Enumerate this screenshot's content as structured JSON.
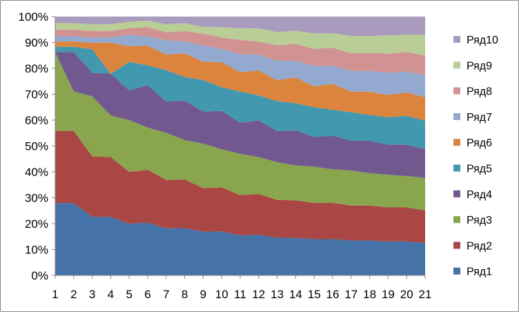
{
  "chart_data": {
    "type": "area",
    "stacked": "percent",
    "title": "",
    "xlabel": "",
    "ylabel": "",
    "x": [
      1,
      2,
      3,
      4,
      5,
      6,
      7,
      8,
      9,
      10,
      11,
      12,
      13,
      14,
      15,
      16,
      17,
      18,
      19,
      20,
      21
    ],
    "x_tick_labels": [
      "1",
      "2",
      "3",
      "4",
      "5",
      "6",
      "7",
      "8",
      "9",
      "10",
      "11",
      "12",
      "13",
      "14",
      "15",
      "16",
      "17",
      "18",
      "19",
      "20",
      "21"
    ],
    "y_tick_labels": [
      "0%",
      "10%",
      "20%",
      "30%",
      "40%",
      "50%",
      "60%",
      "70%",
      "80%",
      "90%",
      "100%"
    ],
    "ylim": [
      0,
      100
    ],
    "grid": false,
    "legend_position": "right",
    "series": [
      {
        "name": "Ряд1",
        "color": "#4572A7",
        "values": [
          27.5,
          27.5,
          22.5,
          22.5,
          20,
          20,
          18,
          18,
          16.7,
          16.7,
          15.5,
          15.5,
          14.5,
          14.5,
          14,
          14,
          13.5,
          13.5,
          13,
          13,
          12.5
        ]
      },
      {
        "name": "Ряд2",
        "color": "#AA4643",
        "values": [
          27.5,
          27.5,
          23,
          23,
          20,
          20,
          18.5,
          18.5,
          16.7,
          16.7,
          15.5,
          15.5,
          14.5,
          14.5,
          14,
          14,
          13.5,
          13.5,
          13,
          13,
          12.5
        ]
      },
      {
        "name": "Ряд3",
        "color": "#89A54E",
        "values": [
          30,
          15,
          23,
          16,
          20,
          16,
          18,
          15,
          17,
          14.5,
          16,
          14,
          14.5,
          13.5,
          14,
          13,
          13.5,
          12.5,
          12.5,
          12,
          12.5
        ]
      },
      {
        "name": "Ряд4",
        "color": "#71588F",
        "values": [
          0,
          15,
          9,
          16,
          11.5,
          16,
          12,
          15,
          12.3,
          14.5,
          12,
          14,
          12,
          13.5,
          11.5,
          13,
          11.5,
          12.5,
          11.5,
          12,
          11
        ]
      },
      {
        "name": "Ряд5",
        "color": "#4198AF",
        "values": [
          2,
          2,
          9,
          0,
          11,
          7.5,
          12,
          9,
          12,
          9,
          12,
          9.5,
          11.5,
          10.5,
          11.5,
          10,
          11,
          10,
          10.5,
          11,
          11
        ]
      },
      {
        "name": "Ряд6",
        "color": "#DB843D",
        "values": [
          2,
          2,
          2.5,
          12,
          6,
          7.5,
          6,
          9,
          7,
          9.5,
          7.5,
          9.5,
          8,
          10,
          8,
          10,
          8,
          9,
          8.5,
          9,
          9
        ]
      },
      {
        "name": "Ряд7",
        "color": "#93A9CF",
        "values": [
          2,
          2,
          2,
          2,
          4.5,
          3.5,
          5.5,
          4.5,
          6.3,
          5.1,
          7,
          6,
          7.5,
          6.5,
          8,
          7,
          8,
          8,
          8.5,
          8,
          8.5
        ]
      },
      {
        "name": "Ряд8",
        "color": "#D19392",
        "values": [
          2.5,
          2.5,
          2.5,
          2.5,
          2.5,
          3.5,
          3,
          4,
          4.5,
          4.2,
          5.5,
          5,
          6,
          6.5,
          6.5,
          7,
          6.8,
          7,
          7.3,
          7.5,
          7.5
        ]
      },
      {
        "name": "Ряд9",
        "color": "#B9CD96",
        "values": [
          2.5,
          2.5,
          2.5,
          2.5,
          2.5,
          2.5,
          3,
          3,
          2.5,
          4,
          4.5,
          5,
          5,
          5,
          6,
          5.5,
          6.7,
          6.5,
          7,
          6.5,
          8
        ]
      },
      {
        "name": "Ряд10",
        "color": "#A99BBD",
        "values": [
          2.5,
          2.5,
          3,
          3,
          2,
          1.5,
          3,
          2.5,
          4,
          4,
          4.5,
          4.5,
          6,
          5.5,
          6.5,
          6.5,
          7.5,
          7.5,
          7.2,
          7,
          7
        ]
      }
    ]
  }
}
